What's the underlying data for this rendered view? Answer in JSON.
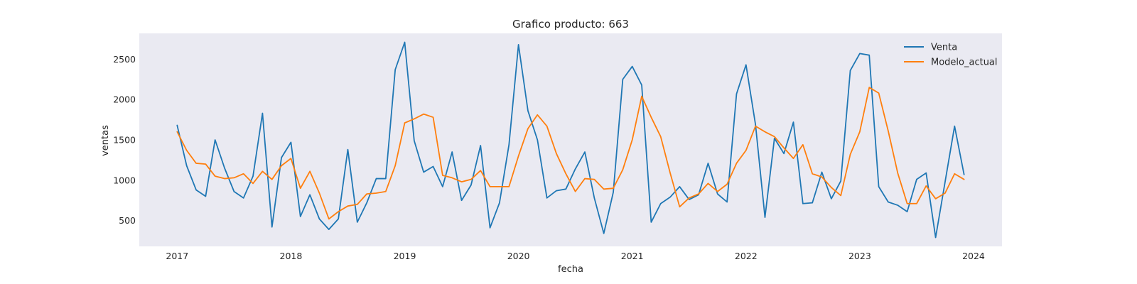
{
  "chart_data": {
    "type": "line",
    "title": "Grafico producto: 663",
    "xlabel": "fecha",
    "ylabel": "ventas",
    "x_start": "2017-01",
    "x_step": "1 month",
    "xlim": [
      2016.667,
      2024.25
    ],
    "ylim": [
      180,
      2820
    ],
    "x_ticks": [
      2017,
      2018,
      2019,
      2020,
      2021,
      2022,
      2023,
      2024
    ],
    "x_tick_labels": [
      "2017",
      "2018",
      "2019",
      "2020",
      "2021",
      "2022",
      "2023",
      "2024"
    ],
    "y_ticks": [
      500,
      1000,
      1500,
      2000,
      2500
    ],
    "y_tick_labels": [
      "500",
      "1000",
      "1500",
      "2000",
      "2500"
    ],
    "grid": false,
    "background": "#eaeaf2",
    "legend_position": "top-right",
    "series": [
      {
        "name": "Venta",
        "color": "#1f77b4",
        "values": [
          1680,
          1180,
          880,
          800,
          1500,
          1150,
          860,
          780,
          1050,
          1830,
          420,
          1280,
          1470,
          550,
          820,
          520,
          390,
          520,
          1380,
          480,
          720,
          1020,
          1020,
          2370,
          2710,
          1490,
          1100,
          1170,
          920,
          1350,
          750,
          940,
          1430,
          410,
          720,
          1440,
          2680,
          1860,
          1500,
          780,
          870,
          890,
          1140,
          1350,
          780,
          340,
          850,
          2250,
          2410,
          2180,
          480,
          710,
          790,
          920,
          760,
          820,
          1210,
          830,
          730,
          2070,
          2430,
          1690,
          540,
          1520,
          1330,
          1720,
          710,
          720,
          1100,
          770,
          990,
          2360,
          2570,
          2550,
          920,
          730,
          690,
          610,
          1010,
          1090,
          290,
          980,
          1670,
          1070
        ]
      },
      {
        "name": "Modelo_actual",
        "color": "#ff7f0e",
        "values": [
          1600,
          1370,
          1210,
          1200,
          1050,
          1020,
          1030,
          1080,
          960,
          1110,
          1010,
          1180,
          1270,
          900,
          1110,
          840,
          520,
          610,
          680,
          700,
          830,
          840,
          860,
          1180,
          1710,
          1760,
          1820,
          1780,
          1060,
          1030,
          980,
          1010,
          1120,
          920,
          920,
          920,
          1300,
          1640,
          1810,
          1670,
          1330,
          1080,
          860,
          1020,
          1010,
          890,
          900,
          1130,
          1500,
          2040,
          1780,
          1540,
          1090,
          670,
          780,
          830,
          960,
          860,
          950,
          1210,
          1370,
          1670,
          1600,
          1540,
          1400,
          1270,
          1440,
          1080,
          1040,
          910,
          810,
          1320,
          1600,
          2150,
          2080,
          1610,
          1090,
          710,
          710,
          930,
          770,
          840,
          1080,
          1010
        ]
      }
    ]
  }
}
